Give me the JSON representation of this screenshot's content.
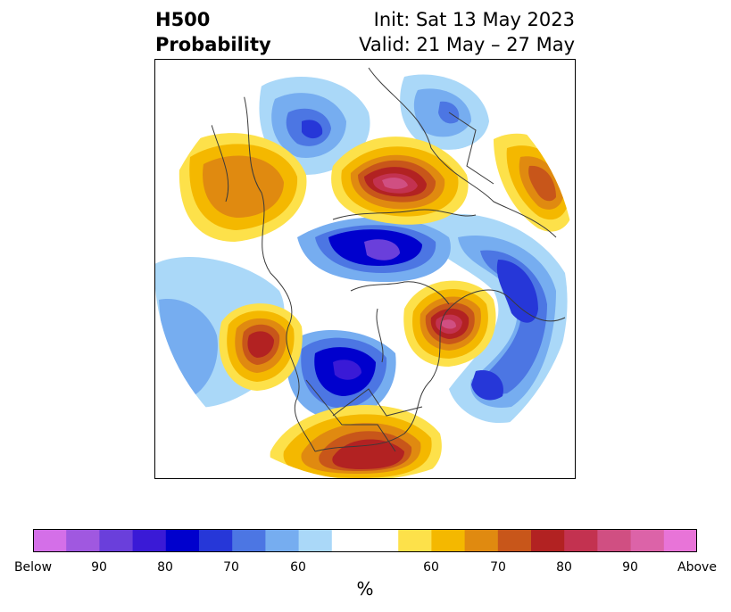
{
  "title": {
    "left_line1": "H500",
    "left_line2": "Probability",
    "right_line1": "Init: Sat 13 May 2023",
    "right_line2": "Valid: 21 May – 27 May"
  },
  "colorbar": {
    "units": "%",
    "below_colors": [
      "#d46fe8",
      "#a058e0",
      "#6a3fdb",
      "#3a1ad6",
      "#0000cd",
      "#2637d8",
      "#4c76e3",
      "#76adf0",
      "#aad8f8"
    ],
    "neutral_color": "#ffffff",
    "above_colors": [
      "#fde14a",
      "#f4b800",
      "#e08a10",
      "#c8561a",
      "#b22222",
      "#c33250",
      "#d04f82",
      "#dc63a8",
      "#e874d8"
    ],
    "tick_labels": [
      "Below",
      "90",
      "80",
      "70",
      "60",
      "60",
      "70",
      "80",
      "90",
      "Above"
    ]
  }
}
